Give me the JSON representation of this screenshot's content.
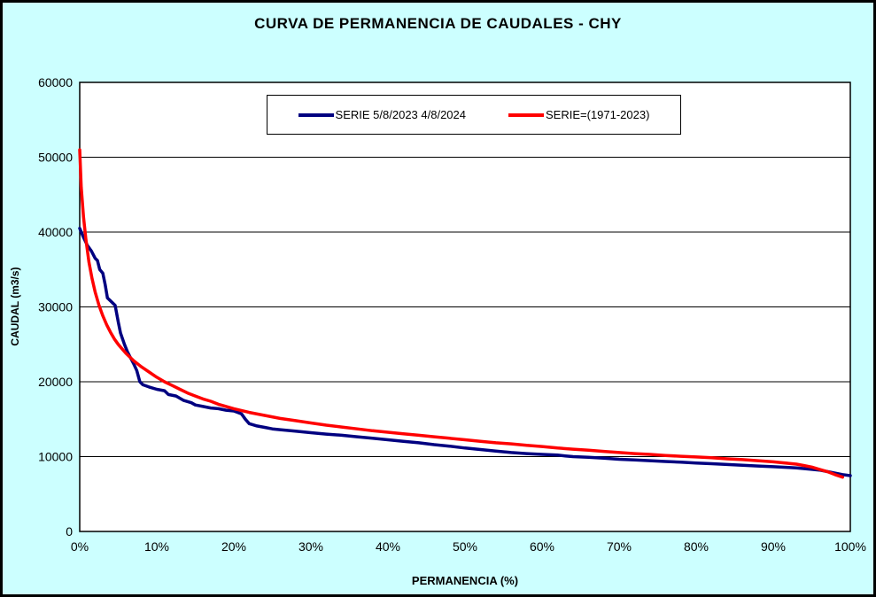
{
  "title": "CURVA DE PERMANENCIA DE CAUDALES - CHY",
  "colors": {
    "background": "#CCFFFF",
    "plot_background": "#FFFFFF",
    "border": "#000000",
    "grid": "#000000",
    "series_blue": "#000080",
    "series_red": "#FF0000"
  },
  "chart_data": {
    "type": "line",
    "title": "CURVA DE PERMANENCIA DE CAUDALES - CHY",
    "xlabel": "PERMANENCIA (%)",
    "ylabel": "CAUDAL (m3/s)",
    "xlim": [
      0,
      100
    ],
    "ylim": [
      0,
      60000
    ],
    "grid": "horizontal",
    "legend_position": "top-center",
    "x_tick_values": [
      0,
      10,
      20,
      30,
      40,
      50,
      60,
      70,
      80,
      90,
      100
    ],
    "x_tick_labels": [
      "0%",
      "10%",
      "20%",
      "30%",
      "40%",
      "50%",
      "60%",
      "70%",
      "80%",
      "90%",
      "100%"
    ],
    "y_tick_values": [
      0,
      10000,
      20000,
      30000,
      40000,
      50000,
      60000
    ],
    "y_tick_labels": [
      "0",
      "10000",
      "20000",
      "30000",
      "40000",
      "50000",
      "60000"
    ],
    "series": [
      {
        "name": "SERIE 5/8/2023 4/8/2024",
        "color": "#000080",
        "points": [
          [
            0,
            40500
          ],
          [
            0.4,
            39500
          ],
          [
            1,
            38200
          ],
          [
            1.5,
            37500
          ],
          [
            2,
            36500
          ],
          [
            2.3,
            36200
          ],
          [
            2.6,
            35000
          ],
          [
            3,
            34500
          ],
          [
            3.3,
            33000
          ],
          [
            3.6,
            31200
          ],
          [
            4,
            30800
          ],
          [
            4.6,
            30200
          ],
          [
            5,
            28000
          ],
          [
            5.3,
            26500
          ],
          [
            5.8,
            25000
          ],
          [
            6.2,
            24000
          ],
          [
            6.6,
            23200
          ],
          [
            7,
            22400
          ],
          [
            7.4,
            21500
          ],
          [
            7.8,
            20000
          ],
          [
            8.2,
            19600
          ],
          [
            9,
            19300
          ],
          [
            10,
            19000
          ],
          [
            11,
            18800
          ],
          [
            11.5,
            18300
          ],
          [
            12.5,
            18100
          ],
          [
            13,
            17800
          ],
          [
            13.5,
            17500
          ],
          [
            14.5,
            17200
          ],
          [
            15,
            16900
          ],
          [
            16,
            16700
          ],
          [
            17,
            16500
          ],
          [
            18,
            16400
          ],
          [
            19,
            16200
          ],
          [
            20,
            16100
          ],
          [
            20.5,
            15900
          ],
          [
            21,
            15700
          ],
          [
            21.5,
            15000
          ],
          [
            22,
            14400
          ],
          [
            23,
            14100
          ],
          [
            24,
            13900
          ],
          [
            25,
            13700
          ],
          [
            26,
            13600
          ],
          [
            28,
            13400
          ],
          [
            30,
            13200
          ],
          [
            32,
            13000
          ],
          [
            34,
            12850
          ],
          [
            36,
            12650
          ],
          [
            38,
            12450
          ],
          [
            40,
            12250
          ],
          [
            42,
            12050
          ],
          [
            44,
            11850
          ],
          [
            46,
            11600
          ],
          [
            48,
            11400
          ],
          [
            50,
            11150
          ],
          [
            52,
            10950
          ],
          [
            54,
            10750
          ],
          [
            56,
            10550
          ],
          [
            58,
            10400
          ],
          [
            60,
            10300
          ],
          [
            62,
            10200
          ],
          [
            63,
            10100
          ],
          [
            64,
            10000
          ],
          [
            66,
            9900
          ],
          [
            68,
            9800
          ],
          [
            70,
            9650
          ],
          [
            72,
            9550
          ],
          [
            74,
            9450
          ],
          [
            76,
            9350
          ],
          [
            78,
            9250
          ],
          [
            80,
            9150
          ],
          [
            82,
            9050
          ],
          [
            84,
            8950
          ],
          [
            86,
            8850
          ],
          [
            88,
            8750
          ],
          [
            90,
            8650
          ],
          [
            92,
            8550
          ],
          [
            93,
            8500
          ],
          [
            95,
            8300
          ],
          [
            96,
            8200
          ],
          [
            97,
            8000
          ],
          [
            98,
            7800
          ],
          [
            99,
            7600
          ],
          [
            100,
            7450
          ]
        ]
      },
      {
        "name": "SERIE=(1971-2023)",
        "color": "#FF0000",
        "points": [
          [
            0,
            51000
          ],
          [
            0.2,
            46000
          ],
          [
            0.5,
            42000
          ],
          [
            0.8,
            39000
          ],
          [
            1.2,
            36000
          ],
          [
            1.6,
            33800
          ],
          [
            2,
            32000
          ],
          [
            2.5,
            30200
          ],
          [
            3,
            28800
          ],
          [
            3.5,
            27600
          ],
          [
            4,
            26600
          ],
          [
            4.5,
            25700
          ],
          [
            5,
            25000
          ],
          [
            5.5,
            24400
          ],
          [
            6,
            23800
          ],
          [
            7,
            22800
          ],
          [
            8,
            22000
          ],
          [
            9,
            21300
          ],
          [
            10,
            20600
          ],
          [
            11,
            20000
          ],
          [
            12,
            19500
          ],
          [
            13,
            19000
          ],
          [
            14,
            18500
          ],
          [
            15,
            18100
          ],
          [
            16,
            17700
          ],
          [
            17,
            17400
          ],
          [
            18,
            17000
          ],
          [
            19,
            16700
          ],
          [
            20,
            16400
          ],
          [
            22,
            15900
          ],
          [
            24,
            15500
          ],
          [
            26,
            15100
          ],
          [
            28,
            14800
          ],
          [
            30,
            14500
          ],
          [
            32,
            14200
          ],
          [
            34,
            13950
          ],
          [
            36,
            13700
          ],
          [
            38,
            13450
          ],
          [
            40,
            13250
          ],
          [
            42,
            13050
          ],
          [
            44,
            12850
          ],
          [
            46,
            12650
          ],
          [
            48,
            12450
          ],
          [
            50,
            12250
          ],
          [
            52,
            12050
          ],
          [
            54,
            11850
          ],
          [
            56,
            11700
          ],
          [
            58,
            11500
          ],
          [
            60,
            11350
          ],
          [
            62,
            11150
          ],
          [
            64,
            11000
          ],
          [
            66,
            10850
          ],
          [
            68,
            10700
          ],
          [
            70,
            10550
          ],
          [
            72,
            10400
          ],
          [
            74,
            10300
          ],
          [
            76,
            10150
          ],
          [
            78,
            10050
          ],
          [
            80,
            9950
          ],
          [
            82,
            9850
          ],
          [
            84,
            9700
          ],
          [
            86,
            9600
          ],
          [
            88,
            9450
          ],
          [
            90,
            9300
          ],
          [
            91,
            9200
          ],
          [
            92,
            9100
          ],
          [
            93,
            9000
          ],
          [
            94,
            8800
          ],
          [
            95,
            8600
          ],
          [
            96,
            8300
          ],
          [
            97,
            8000
          ],
          [
            98,
            7600
          ],
          [
            99,
            7250
          ]
        ]
      }
    ]
  }
}
